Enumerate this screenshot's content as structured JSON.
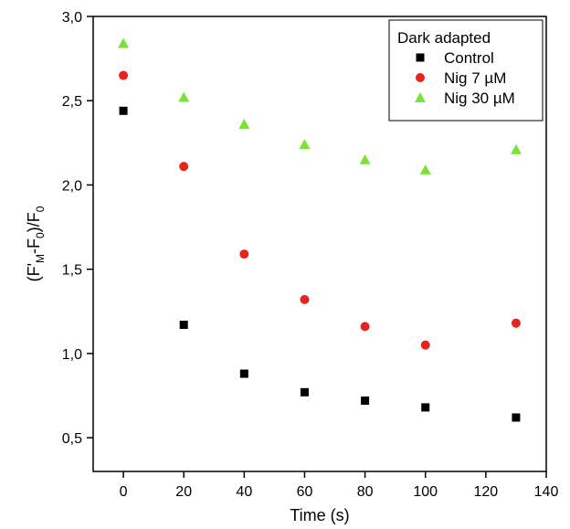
{
  "chart_data": {
    "type": "scatter",
    "xlabel": "Time (s)",
    "ylabel": {
      "parts": [
        {
          "text": "(F'",
          "sub": false
        },
        {
          "text": "M",
          "sub": true
        },
        {
          "text": "-F",
          "sub": false
        },
        {
          "text": "0",
          "sub": true
        },
        {
          "text": ")/F",
          "sub": false
        },
        {
          "text": "0",
          "sub": true
        }
      ]
    },
    "xlim": [
      -10,
      140
    ],
    "ylim": [
      0.3,
      3.0
    ],
    "xticks": [
      {
        "value": 0,
        "label": "0"
      },
      {
        "value": 20,
        "label": "20"
      },
      {
        "value": 40,
        "label": "40"
      },
      {
        "value": 60,
        "label": "60"
      },
      {
        "value": 80,
        "label": "80"
      },
      {
        "value": 100,
        "label": "100"
      },
      {
        "value": 120,
        "label": "120"
      },
      {
        "value": 140,
        "label": "140"
      }
    ],
    "yticks": [
      {
        "value": 0.5,
        "label": "0,5"
      },
      {
        "value": 1.0,
        "label": "1,0"
      },
      {
        "value": 1.5,
        "label": "1,5"
      },
      {
        "value": 2.0,
        "label": "2,0"
      },
      {
        "value": 2.5,
        "label": "2,5"
      },
      {
        "value": 3.0,
        "label": "3,0"
      }
    ],
    "grid": false,
    "legend": {
      "title": "Dark adapted",
      "position": "top-right"
    },
    "x": [
      0,
      20,
      40,
      60,
      80,
      100,
      130
    ],
    "series": [
      {
        "name": "Control",
        "marker": "square",
        "color": "#000000",
        "values": [
          2.44,
          1.17,
          0.88,
          0.77,
          0.72,
          0.68,
          0.62
        ]
      },
      {
        "name": "Nig 7 µM",
        "marker": "circle",
        "color": "#e8231a",
        "values": [
          2.65,
          2.11,
          1.59,
          1.32,
          1.16,
          1.05,
          1.18
        ]
      },
      {
        "name": "Nig 30 µM",
        "marker": "triangle",
        "color": "#7be23a",
        "values": [
          2.84,
          2.52,
          2.36,
          2.24,
          2.15,
          2.09,
          2.21
        ]
      }
    ]
  }
}
